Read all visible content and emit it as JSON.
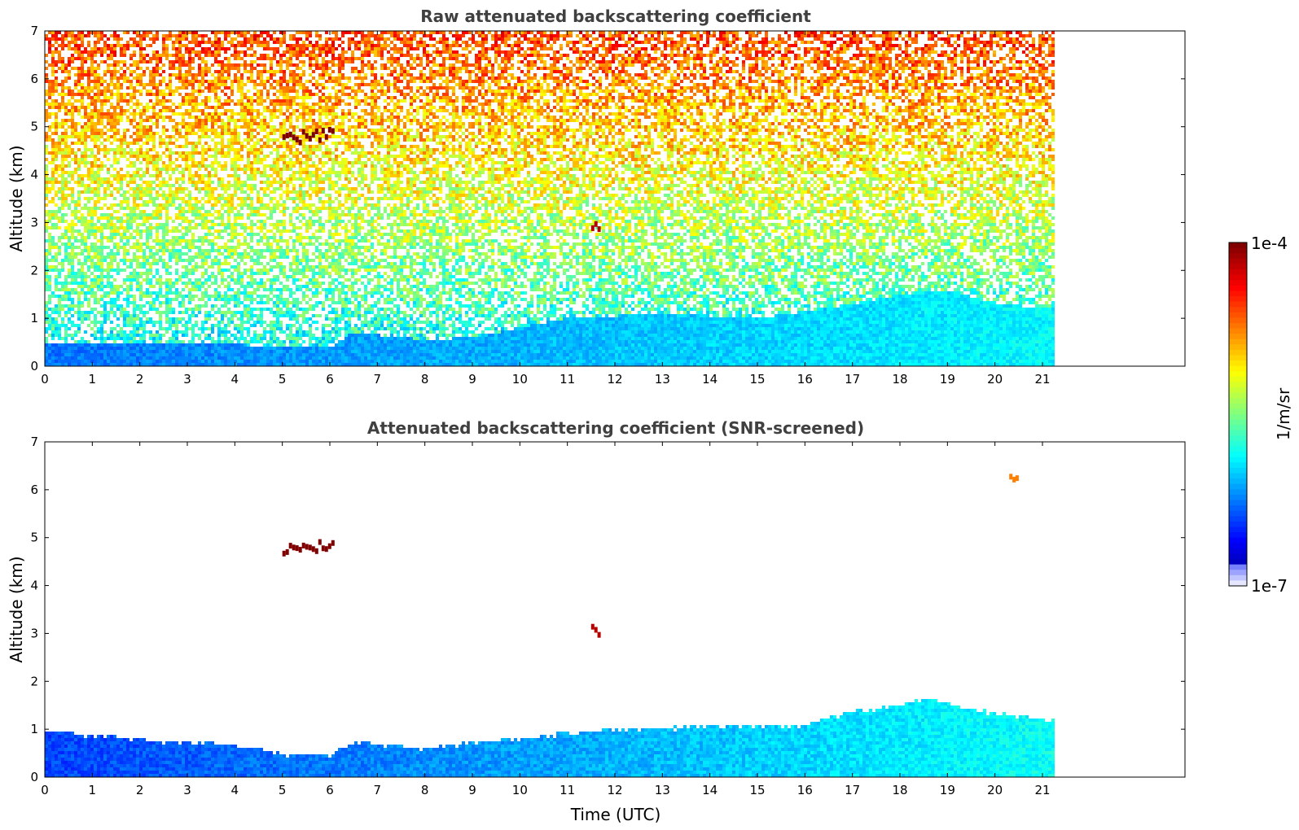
{
  "chart_data": [
    {
      "type": "heatmap",
      "title": "Raw attenuated backscattering coefficient",
      "xlabel": "",
      "ylabel": "Altitude (km)",
      "xlim": [
        0,
        24
      ],
      "ylim": [
        0,
        7
      ],
      "xticks": [
        "0",
        "1",
        "2",
        "3",
        "4",
        "5",
        "6",
        "7",
        "8",
        "9",
        "10",
        "11",
        "12",
        "13",
        "14",
        "15",
        "16",
        "17",
        "18",
        "19",
        "20",
        "21"
      ],
      "yticks": [
        "0",
        "1",
        "2",
        "3",
        "4",
        "5",
        "6",
        "7"
      ],
      "data_end_time": 21.3,
      "boundary_layer_top_km": [
        [
          0,
          0.5
        ],
        [
          2,
          0.45
        ],
        [
          4,
          0.45
        ],
        [
          5,
          0.4
        ],
        [
          6,
          0.4
        ],
        [
          6.5,
          0.7
        ],
        [
          8,
          0.55
        ],
        [
          9,
          0.6
        ],
        [
          10,
          0.8
        ],
        [
          11,
          1.0
        ],
        [
          13,
          1.1
        ],
        [
          15,
          1.0
        ],
        [
          17,
          1.3
        ],
        [
          18,
          1.5
        ],
        [
          19,
          1.6
        ],
        [
          20,
          1.3
        ],
        [
          21.3,
          1.2
        ]
      ],
      "cloud_features": [
        {
          "t_start": 5.0,
          "t_end": 6.1,
          "alt_km": 4.8,
          "level": 1.0
        },
        {
          "t_start": 11.5,
          "t_end": 11.7,
          "alt_km": 3.0,
          "level": 0.95
        }
      ]
    },
    {
      "type": "heatmap",
      "title": "Attenuated backscattering coefficient (SNR-screened)",
      "xlabel": "Time (UTC)",
      "ylabel": "Altitude (km)",
      "xlim": [
        0,
        24
      ],
      "ylim": [
        0,
        7
      ],
      "xticks": [
        "0",
        "1",
        "2",
        "3",
        "4",
        "5",
        "6",
        "7",
        "8",
        "9",
        "10",
        "11",
        "12",
        "13",
        "14",
        "15",
        "16",
        "17",
        "18",
        "19",
        "20",
        "21"
      ],
      "yticks": [
        "0",
        "1",
        "2",
        "3",
        "4",
        "5",
        "6",
        "7"
      ],
      "data_end_time": 21.3,
      "boundary_layer_top_km": [
        [
          0,
          0.95
        ],
        [
          1,
          0.9
        ],
        [
          2,
          0.8
        ],
        [
          3,
          0.75
        ],
        [
          4,
          0.7
        ],
        [
          5,
          0.5
        ],
        [
          6,
          0.5
        ],
        [
          6.5,
          0.75
        ],
        [
          8,
          0.6
        ],
        [
          9,
          0.75
        ],
        [
          10,
          0.8
        ],
        [
          11,
          0.95
        ],
        [
          12,
          1.0
        ],
        [
          13,
          1.05
        ],
        [
          15,
          1.1
        ],
        [
          16,
          1.1
        ],
        [
          17,
          1.4
        ],
        [
          18,
          1.5
        ],
        [
          18.5,
          1.65
        ],
        [
          19,
          1.55
        ],
        [
          20,
          1.35
        ],
        [
          21.3,
          1.2
        ]
      ],
      "cloud_features": [
        {
          "t_start": 5.0,
          "t_end": 6.1,
          "alt_km": 4.8,
          "level": 1.0
        },
        {
          "t_start": 11.5,
          "t_end": 11.7,
          "alt_km": 3.0,
          "level": 0.95
        },
        {
          "t_start": 20.3,
          "t_end": 20.5,
          "alt_km": 6.3,
          "level": 0.75
        }
      ]
    }
  ],
  "colorbar": {
    "label": "1/m/sr",
    "max_label": "1e-4",
    "min_label": "1e-7",
    "colormap": "jet",
    "scale": "log"
  }
}
